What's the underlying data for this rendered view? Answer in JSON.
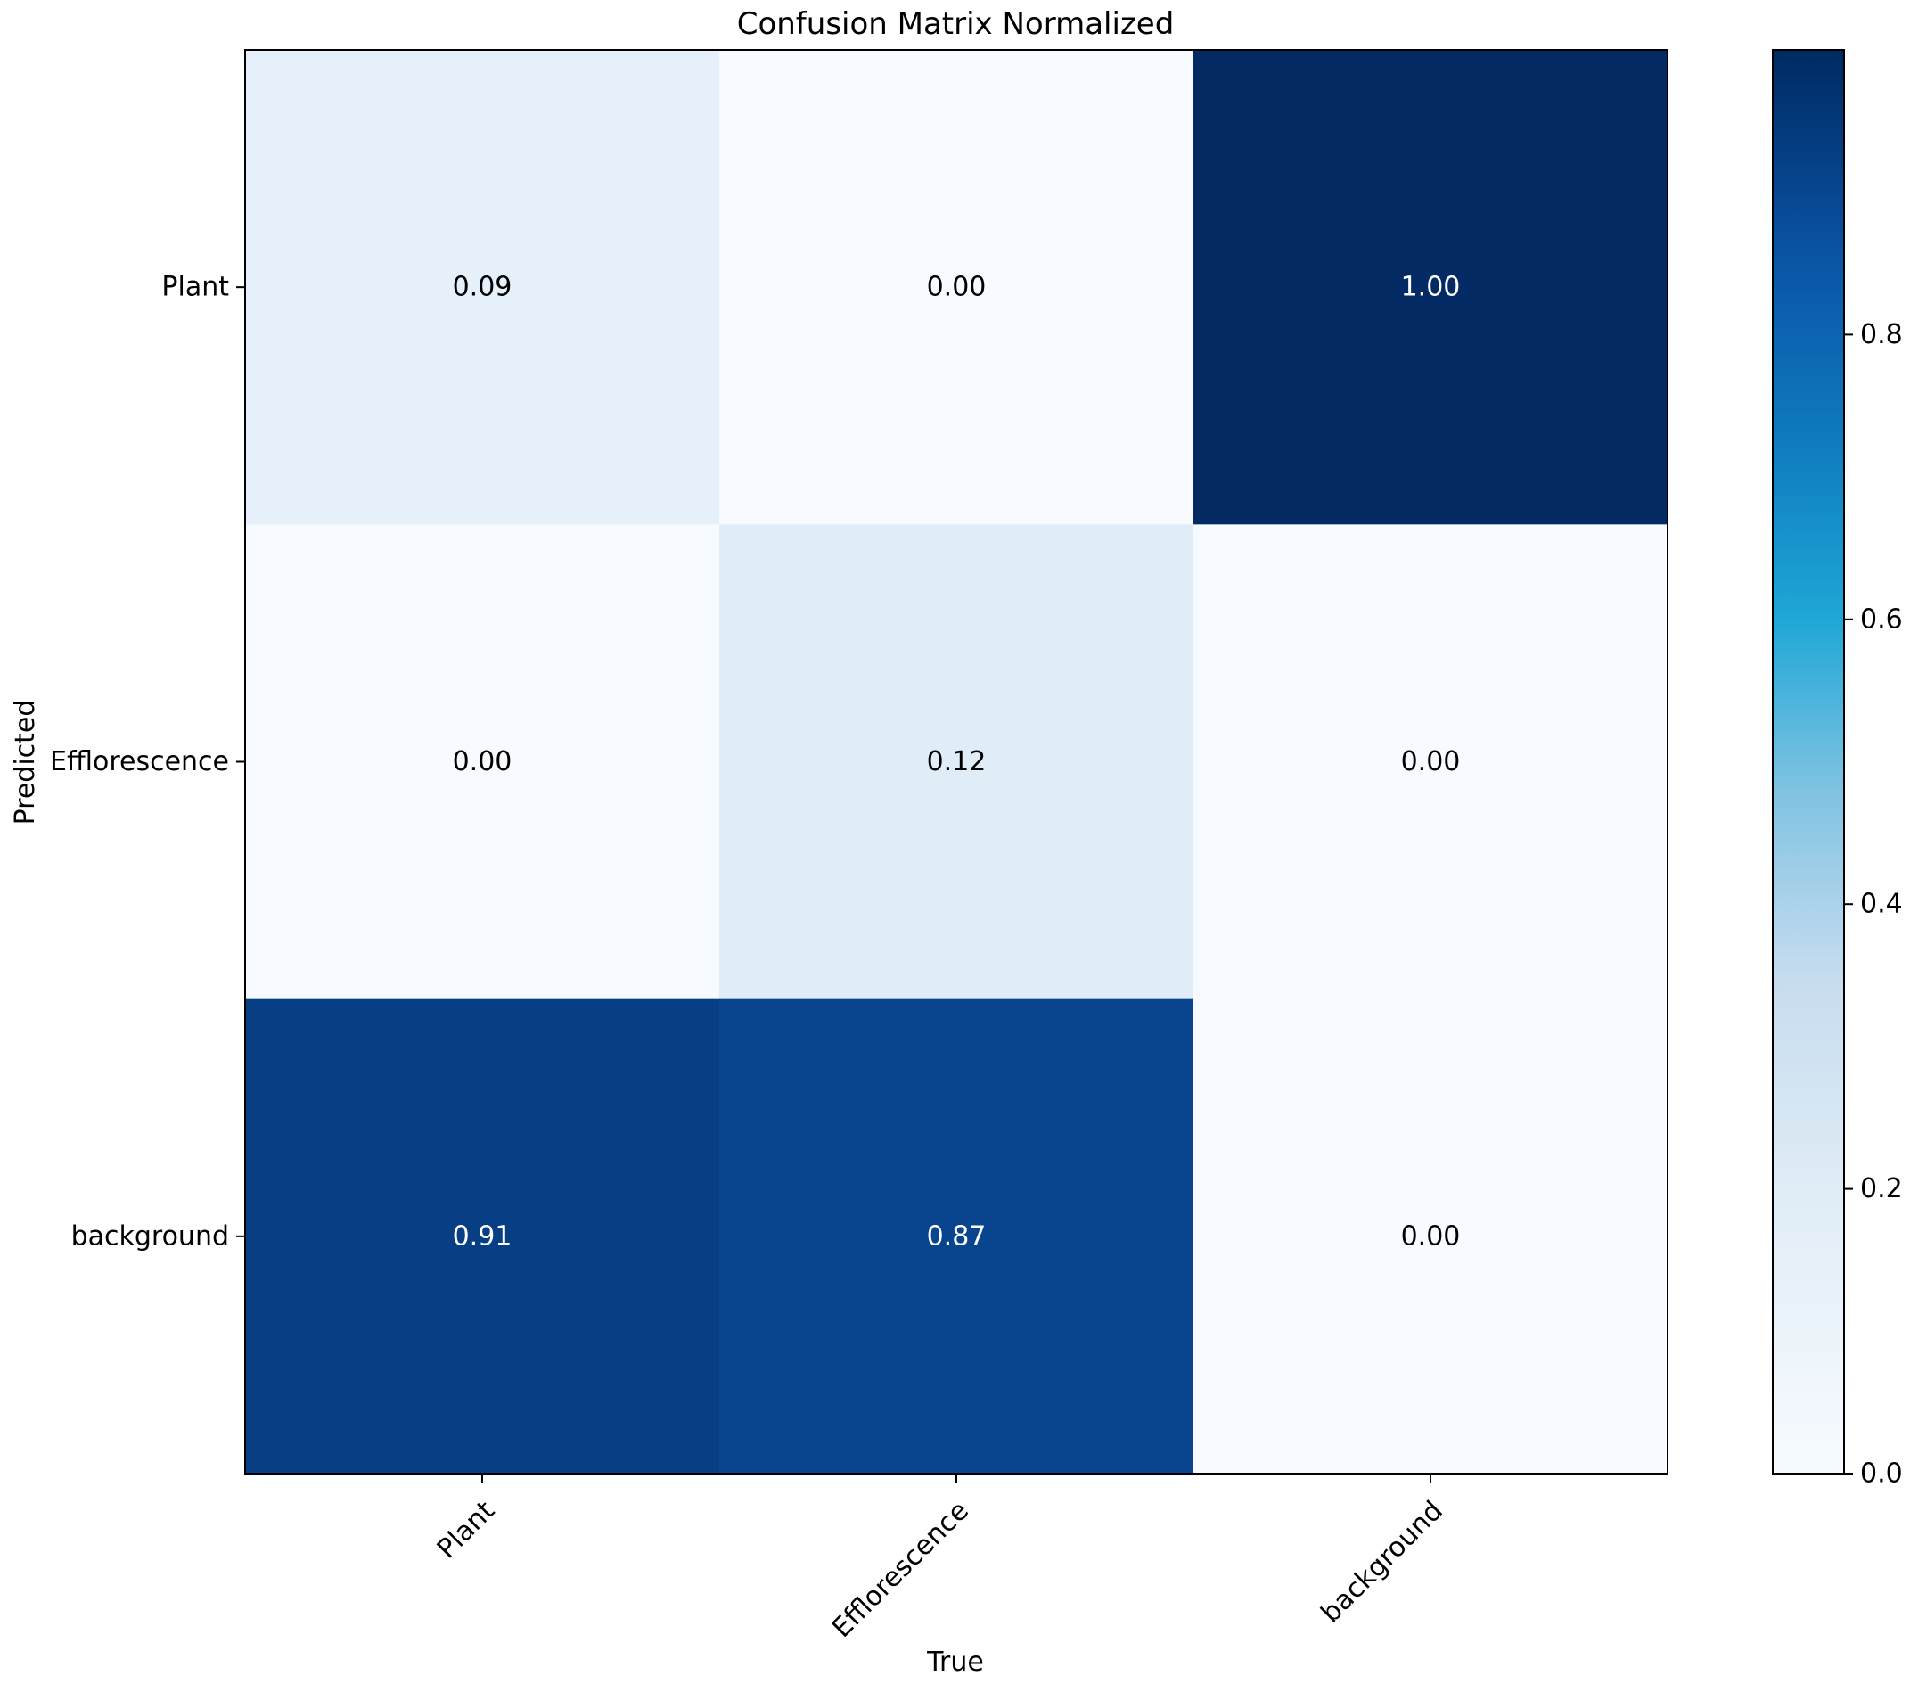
{
  "chart_data": {
    "type": "heatmap",
    "title": "Confusion Matrix Normalized",
    "xlabel": "True",
    "ylabel": "Predicted",
    "x_categories": [
      "Plant",
      "Efflorescence",
      "background"
    ],
    "y_categories": [
      "Plant",
      "Efflorescence",
      "background"
    ],
    "values": [
      [
        0.09,
        0.0,
        1.0
      ],
      [
        0.0,
        0.12,
        0.0
      ],
      [
        0.91,
        0.87,
        0.0
      ]
    ],
    "value_labels": [
      [
        "0.09",
        "0.00",
        "1.00"
      ],
      [
        "0.00",
        "0.12",
        "0.00"
      ],
      [
        "0.91",
        "0.87",
        "0.00"
      ]
    ],
    "colormap": "Blues",
    "colorbar": {
      "range": [
        0.0,
        1.0
      ],
      "ticks": [
        0.0,
        0.2,
        0.4,
        0.6,
        0.8
      ],
      "tick_labels": [
        "0.0",
        "0.2",
        "0.4",
        "0.6",
        "0.8"
      ]
    }
  }
}
